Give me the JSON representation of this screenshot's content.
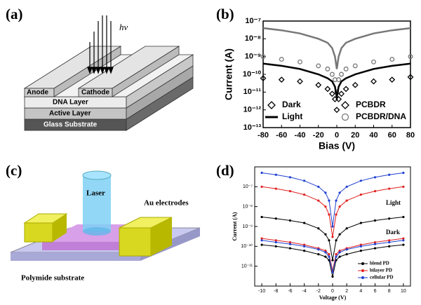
{
  "panel_labels": [
    "(a)",
    "(b)",
    "(c)",
    "(d)"
  ],
  "diagram_a": {
    "light_label": "hν",
    "electrodes": [
      "Anode",
      "Cathode"
    ],
    "layers": [
      "DNA Layer",
      "Active Layer",
      "Glass Substrate"
    ]
  },
  "diagram_c": {
    "beam": "Laser",
    "electrodes": "Au electrodes",
    "substrate": "Polymide substrate"
  },
  "chart_data": [
    {
      "type": "line",
      "log_y": true,
      "x_label": "Bias (V)",
      "y_label": "Current (A)",
      "x": [
        -80,
        -60,
        -40,
        -20,
        -10,
        -5,
        -2,
        0,
        2,
        5,
        10,
        20,
        40,
        60,
        80
      ],
      "xlim": [
        -80,
        80
      ],
      "xticks": [
        -80,
        -60,
        -40,
        -20,
        0,
        20,
        40,
        60,
        80
      ],
      "ylim": [
        1e-13,
        1e-07
      ],
      "yticks": [
        {
          "value": 1e-13,
          "label": "10⁻¹³"
        },
        {
          "value": 1e-12,
          "label": "10⁻¹²"
        },
        {
          "value": 1e-11,
          "label": "10⁻¹¹"
        },
        {
          "value": 1e-10,
          "label": "10⁻¹⁰"
        },
        {
          "value": 1e-09,
          "label": "10⁻⁹"
        },
        {
          "value": 1e-08,
          "label": "10⁻⁸"
        },
        {
          "value": 1e-07,
          "label": "10⁻⁷"
        }
      ],
      "legend": [
        {
          "label": "Dark",
          "marker": "diamond"
        },
        {
          "label": "Light",
          "marker": "line"
        },
        {
          "label": "PCBDR",
          "marker": "diamond"
        },
        {
          "label": "PCBDR/DNA",
          "marker": "circle"
        }
      ],
      "series": [
        {
          "color": "#777777",
          "marker": "line",
          "values": [
            4e-08,
            3e-08,
            2e-08,
            1e-08,
            6e-09,
            3e-09,
            1e-09,
            2e-10,
            1e-09,
            3e-09,
            6e-09,
            1e-08,
            2e-08,
            3e-08,
            4e-08
          ]
        },
        {
          "color": "#777777",
          "marker": "circle",
          "values": [
            1e-09,
            7e-10,
            5e-10,
            3e-10,
            2e-10,
            1e-10,
            5e-11,
            1e-11,
            5e-11,
            1e-10,
            2e-10,
            3e-10,
            5e-10,
            7e-10,
            1e-09
          ]
        },
        {
          "color": "#000000",
          "marker": "line",
          "values": [
            4e-10,
            3e-10,
            2e-10,
            1e-10,
            6e-11,
            4e-11,
            2e-11,
            5e-12,
            2e-11,
            4e-11,
            6e-11,
            1e-10,
            2e-10,
            3e-10,
            4e-10
          ]
        },
        {
          "color": "#000000",
          "marker": "diamond",
          "values": [
            6e-11,
            5e-11,
            4e-11,
            2.5e-11,
            1.5e-11,
            8e-12,
            4e-12,
            1e-12,
            4e-12,
            8e-12,
            1.5e-11,
            2.5e-11,
            4e-11,
            5e-11,
            7e-11
          ]
        }
      ]
    },
    {
      "type": "line",
      "log_y": true,
      "x_label": "Voltage (V)",
      "y_label": "Current (A)",
      "x": [
        -10,
        -8,
        -6,
        -4,
        -2,
        -1,
        -0.5,
        0,
        0.5,
        1,
        2,
        4,
        6,
        8,
        10
      ],
      "xlim": [
        -11,
        11
      ],
      "xticks": [
        -10,
        -8,
        -6,
        -4,
        -2,
        0,
        2,
        4,
        6,
        8,
        10
      ],
      "ylim": [
        1e-12,
        1e-06
      ],
      "yticks": [
        {
          "value": 1e-11,
          "label": "10⁻¹¹"
        },
        {
          "value": 1e-10,
          "label": "10⁻¹⁰"
        },
        {
          "value": 1e-09,
          "label": "10⁻⁹"
        },
        {
          "value": 1e-08,
          "label": "10⁻⁸"
        },
        {
          "value": 1e-07,
          "label": "10⁻⁷"
        }
      ],
      "annotations": [
        "Light",
        "Dark"
      ],
      "series": [
        {
          "name": "blend PD",
          "color": "#000000",
          "marker": "dot",
          "values": [
            3e-09,
            2.5e-09,
            2e-09,
            1.5e-09,
            8e-10,
            4e-10,
            2e-10,
            2e-11,
            2e-10,
            4e-10,
            8e-10,
            1.5e-09,
            2e-09,
            2.5e-09,
            3e-09
          ]
        },
        {
          "name": "bilayer PD",
          "color": "#e02020",
          "marker": "dot",
          "values": [
            1e-07,
            8e-08,
            6e-08,
            4e-08,
            2e-08,
            1e-08,
            4e-09,
            3e-10,
            4e-09,
            1e-08,
            2e-08,
            4e-08,
            6e-08,
            8e-08,
            1e-07
          ]
        },
        {
          "name": "cellular PD",
          "color": "#2040d0",
          "marker": "dot",
          "values": [
            5e-07,
            4e-07,
            3e-07,
            2e-07,
            1e-07,
            5e-08,
            2e-08,
            1e-09,
            2e-08,
            5e-08,
            1e-07,
            2e-07,
            3e-07,
            4e-07,
            5e-07
          ]
        },
        {
          "color": "#000000",
          "marker": "dot",
          "values": [
            1.2e-10,
            1e-10,
            8e-11,
            6e-11,
            4e-11,
            3e-11,
            2e-11,
            3e-12,
            2e-11,
            3e-11,
            4e-11,
            6e-11,
            8e-11,
            1e-10,
            1.2e-10
          ]
        },
        {
          "color": "#e02020",
          "marker": "dot",
          "values": [
            2.5e-10,
            2e-10,
            1.6e-10,
            1.2e-10,
            8e-11,
            6e-11,
            4e-11,
            6e-12,
            4e-11,
            6e-11,
            8e-11,
            1.2e-10,
            1.6e-10,
            2e-10,
            2.5e-10
          ]
        },
        {
          "color": "#2040d0",
          "marker": "dot",
          "values": [
            2e-10,
            1.6e-10,
            1.3e-10,
            1e-10,
            7e-11,
            5e-11,
            3e-11,
            5e-12,
            3e-11,
            5e-11,
            7e-11,
            1e-10,
            1.3e-10,
            1.6e-10,
            2e-10
          ]
        }
      ]
    }
  ]
}
